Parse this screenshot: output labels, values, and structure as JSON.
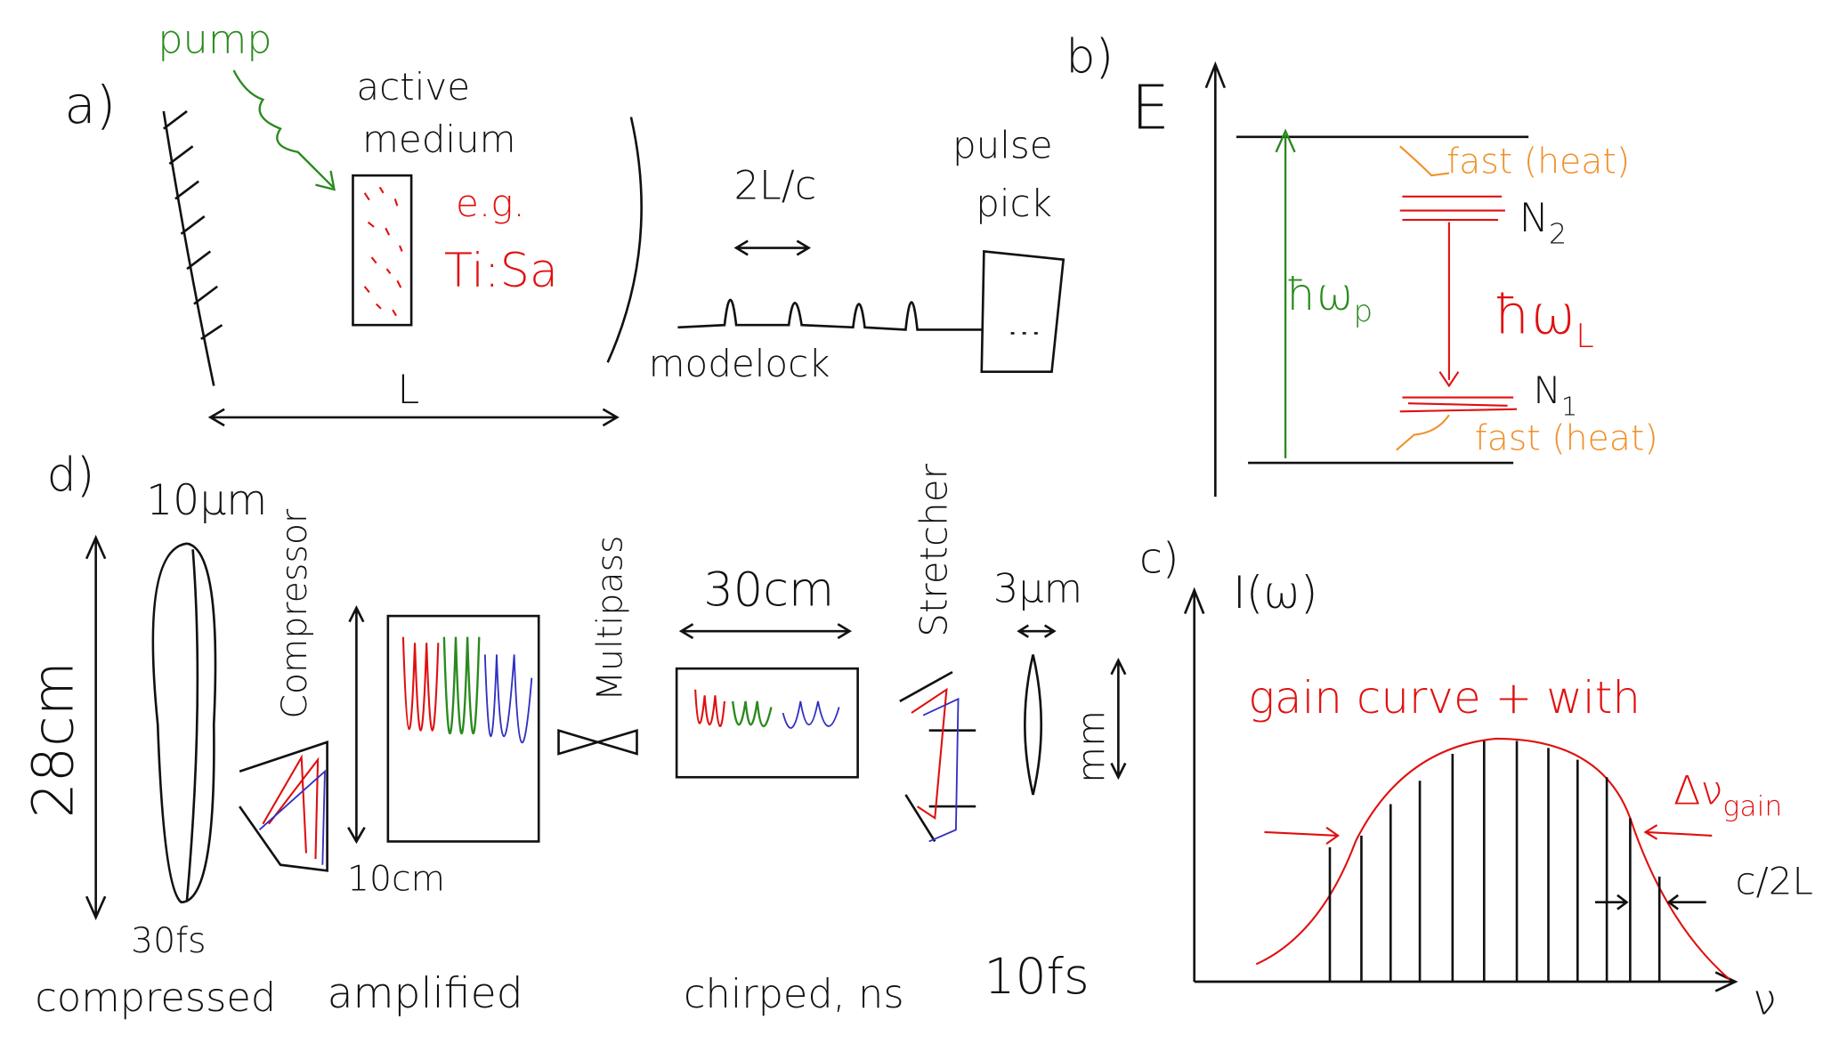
{
  "panel_a": {
    "label": "a)",
    "pump": "pump",
    "medium": [
      "active",
      "medium"
    ],
    "example": [
      "e.g.",
      "Ti:Sa"
    ],
    "round_trip": "2L/c",
    "pulse_pick": [
      "pulse",
      "pick"
    ],
    "modelock": "modelock",
    "length": "L"
  },
  "panel_b": {
    "label": "b)",
    "axis": "E",
    "fast_upper": "fast (heat)",
    "n2": "N",
    "n2_sub": "2",
    "pump_energy": "ħω",
    "pump_sub": "p",
    "laser_energy": "ħω",
    "laser_sub": "L",
    "n1": "N",
    "n1_sub": "1",
    "fast_lower": "fast (heat)"
  },
  "panel_c": {
    "label": "c)",
    "y_axis": "I(ω)",
    "gain": "gain curve + with",
    "bandwidth": "Δν",
    "bandwidth_sub": "gain",
    "spacing": "c/2L",
    "x_axis": "ν"
  },
  "panel_d": {
    "label": "d)",
    "width": "10μm",
    "length": "28cm",
    "compressor": "Compressor",
    "multipass": "Multipass",
    "beam": "30cm",
    "stretcher": "Stretcher",
    "seed_width": "3μm",
    "seed_length": "mm",
    "height": "10cm",
    "stages": [
      [
        "30fs",
        "compressed"
      ],
      [
        "amplified"
      ],
      [
        "chirped, ns"
      ],
      [
        "10fs"
      ]
    ]
  }
}
